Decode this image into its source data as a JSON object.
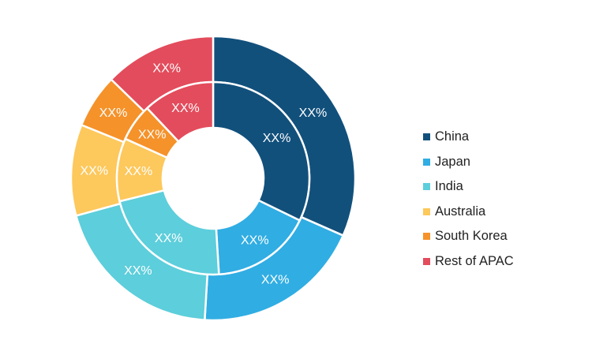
{
  "chart_data": {
    "type": "pie",
    "subtype": "nested-donut",
    "categories": [
      "China",
      "Japan",
      "India",
      "Australia",
      "South Korea",
      "Rest of APAC"
    ],
    "colors": [
      "#12507c",
      "#30ade3",
      "#5dcedb",
      "#fdc85c",
      "#f5922a",
      "#e34c5c"
    ],
    "rings": [
      {
        "ring": "outer",
        "values": [
          33.5,
          20.5,
          21.0,
          11.0,
          6.5,
          13.5
        ],
        "labels": [
          "XX%",
          "XX%",
          "XX%",
          "XX%",
          "XX%",
          "XX%"
        ]
      },
      {
        "ring": "inner",
        "values": [
          33.5,
          17.5,
          23.0,
          11.0,
          6.5,
          12.5
        ],
        "labels": [
          "XX%",
          "XX%",
          "XX%",
          "XX%",
          "XX%",
          "XX%"
        ]
      }
    ],
    "legend_position": "right"
  }
}
